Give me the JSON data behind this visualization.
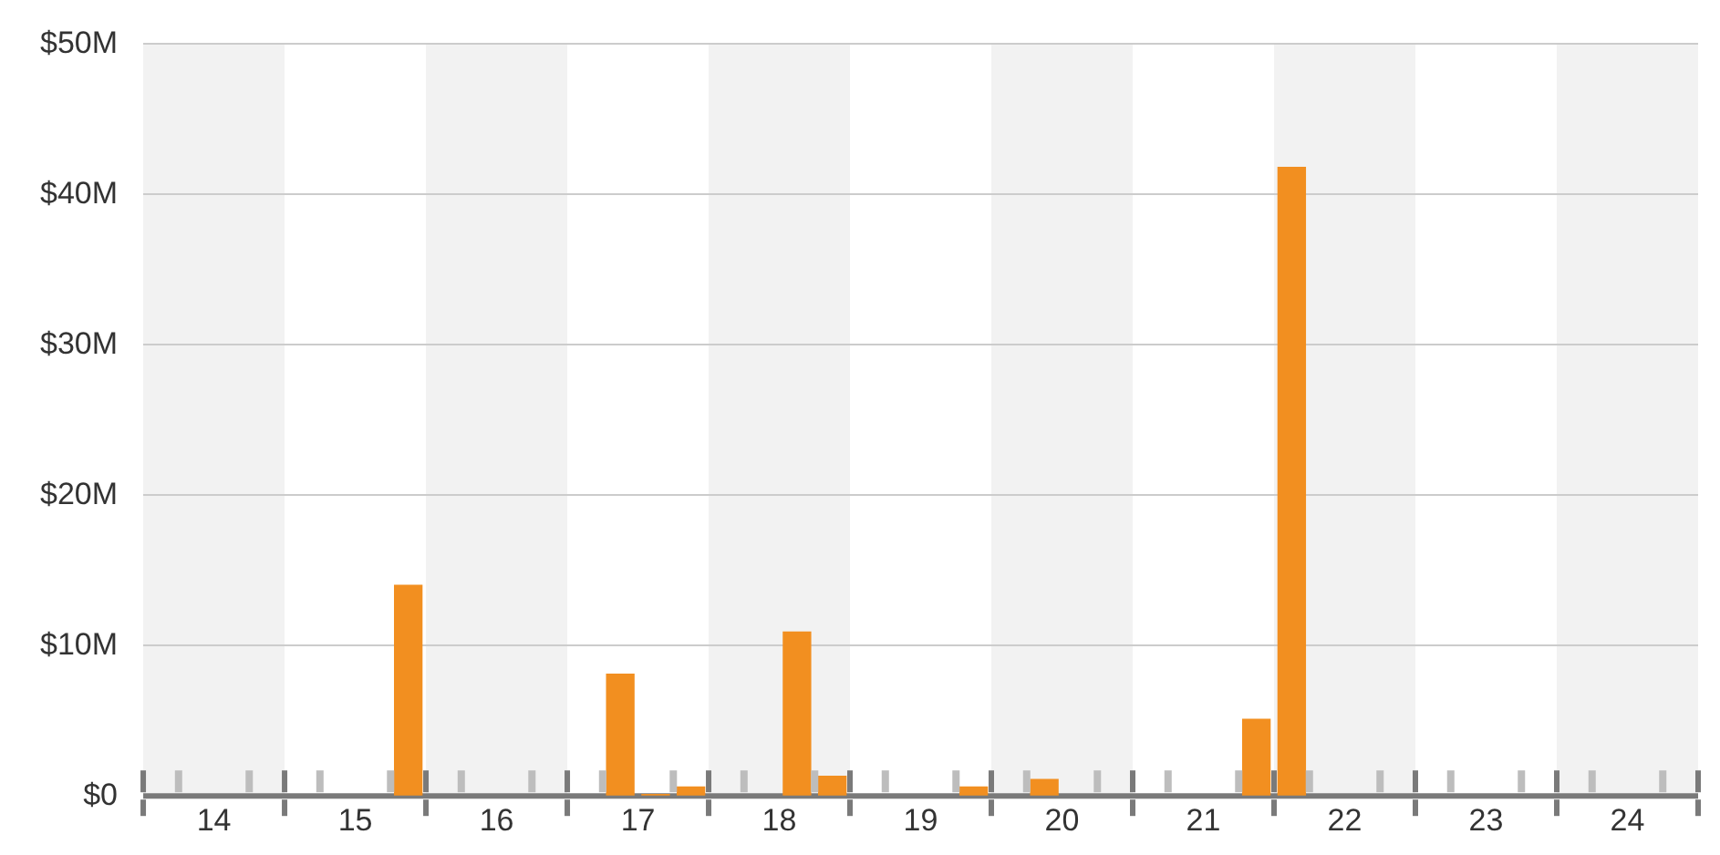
{
  "chart_data": {
    "type": "bar",
    "x": [
      15.875,
      17.375,
      17.625,
      17.875,
      18.625,
      18.875,
      19.875,
      20.375,
      21.875,
      22.125
    ],
    "values": [
      14.0,
      8.1,
      0.1,
      0.6,
      10.9,
      1.3,
      0.6,
      1.1,
      5.1,
      41.8
    ],
    "color": "#f28f20",
    "xlim": [
      14,
      25
    ],
    "xticks": [
      {
        "value": 14,
        "label": null
      },
      {
        "value": 14.25,
        "label": null
      },
      {
        "value": 14.5,
        "label": "14"
      },
      {
        "value": 14.75,
        "label": null
      },
      {
        "value": 15,
        "label": null
      },
      {
        "value": 15.25,
        "label": null
      },
      {
        "value": 15.5,
        "label": "15"
      },
      {
        "value": 15.75,
        "label": null
      },
      {
        "value": 16,
        "label": null
      },
      {
        "value": 16.25,
        "label": null
      },
      {
        "value": 16.5,
        "label": "16"
      },
      {
        "value": 16.75,
        "label": null
      },
      {
        "value": 17,
        "label": null
      },
      {
        "value": 17.25,
        "label": null
      },
      {
        "value": 17.5,
        "label": "17"
      },
      {
        "value": 17.75,
        "label": null
      },
      {
        "value": 18,
        "label": null
      },
      {
        "value": 18.25,
        "label": null
      },
      {
        "value": 18.5,
        "label": "18"
      },
      {
        "value": 18.75,
        "label": null
      },
      {
        "value": 19,
        "label": null
      },
      {
        "value": 19.25,
        "label": null
      },
      {
        "value": 19.5,
        "label": "19"
      },
      {
        "value": 19.75,
        "label": null
      },
      {
        "value": 20,
        "label": null
      },
      {
        "value": 20.25,
        "label": null
      },
      {
        "value": 20.5,
        "label": "20"
      },
      {
        "value": 20.75,
        "label": null
      },
      {
        "value": 21,
        "label": null
      },
      {
        "value": 21.25,
        "label": null
      },
      {
        "value": 21.5,
        "label": "21"
      },
      {
        "value": 21.75,
        "label": null
      },
      {
        "value": 22,
        "label": null
      },
      {
        "value": 22.25,
        "label": null
      },
      {
        "value": 22.5,
        "label": "22"
      },
      {
        "value": 22.75,
        "label": null
      },
      {
        "value": 23,
        "label": null
      },
      {
        "value": 23.25,
        "label": null
      },
      {
        "value": 23.5,
        "label": "23"
      },
      {
        "value": 23.75,
        "label": null
      },
      {
        "value": 24,
        "label": null
      },
      {
        "value": 24.25,
        "label": null
      },
      {
        "value": 24.5,
        "label": "24"
      },
      {
        "value": 24.75,
        "label": null
      },
      {
        "value": 25,
        "label": null
      }
    ],
    "ylim": [
      0,
      50
    ],
    "yticks": [
      {
        "value": 0,
        "label": "$0"
      },
      {
        "value": 10,
        "label": "$10M"
      },
      {
        "value": 20,
        "label": "$20M"
      },
      {
        "value": 30,
        "label": "$30M"
      },
      {
        "value": 40,
        "label": "$40M"
      },
      {
        "value": 50,
        "label": "$50M"
      }
    ],
    "grid": "y",
    "legend": false,
    "bands": [
      {
        "axis": "x",
        "from": 14,
        "to": 15,
        "color": "#f2f2f2"
      },
      {
        "axis": "x",
        "from": 16,
        "to": 17,
        "color": "#f2f2f2"
      },
      {
        "axis": "x",
        "from": 18,
        "to": 19,
        "color": "#f2f2f2"
      },
      {
        "axis": "x",
        "from": 20,
        "to": 21,
        "color": "#f2f2f2"
      },
      {
        "axis": "x",
        "from": 22,
        "to": 23,
        "color": "#f2f2f2"
      },
      {
        "axis": "x",
        "from": 24,
        "to": 25,
        "color": "#f2f2f2"
      }
    ]
  }
}
